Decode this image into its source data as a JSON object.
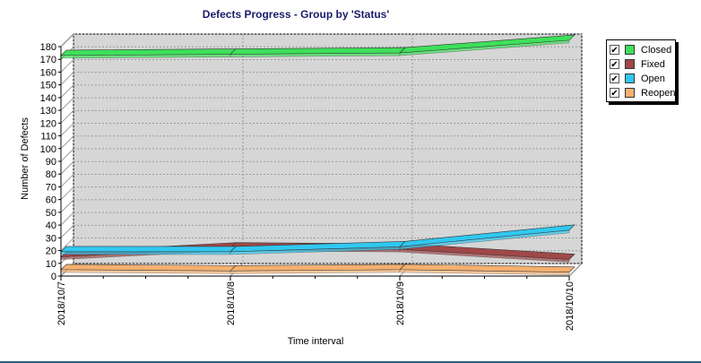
{
  "chart_data": {
    "type": "line",
    "title": "Defects Progress - Group by 'Status'",
    "xlabel": "Time interval",
    "ylabel": "Number of Defects",
    "categories": [
      "2018/10/7",
      "2018/10/8",
      "2018/10/9",
      "2018/10/10"
    ],
    "ylim": [
      0,
      180
    ],
    "ytick_step": 10,
    "grid": true,
    "legend_position": "right",
    "series": [
      {
        "name": "Closed",
        "color": "#3ee05a",
        "values": [
          173,
          174,
          175,
          185
        ]
      },
      {
        "name": "Fixed",
        "color": "#a04848",
        "values": [
          15,
          22,
          21,
          13
        ]
      },
      {
        "name": "Open",
        "color": "#30c8f0",
        "values": [
          19,
          19,
          23,
          36
        ]
      },
      {
        "name": "Reopen",
        "color": "#f4b070",
        "values": [
          5,
          4,
          5,
          3
        ]
      }
    ]
  },
  "legend": {
    "items": [
      {
        "label": "Closed",
        "checked": "✔"
      },
      {
        "label": "Fixed",
        "checked": "✔"
      },
      {
        "label": "Open",
        "checked": "✔"
      },
      {
        "label": "Reopen",
        "checked": "✔"
      }
    ]
  }
}
